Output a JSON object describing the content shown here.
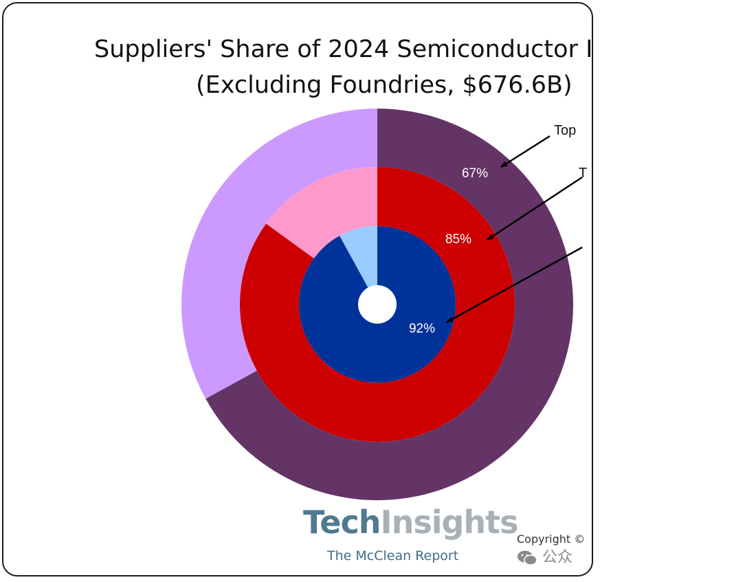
{
  "title": {
    "line1": "Suppliers' Share of 2024 Semiconductor I",
    "line2": "(Excluding Foundries, $676.6B)"
  },
  "callouts": {
    "outer": "Top",
    "middle": "T",
    "inner": ""
  },
  "logo": {
    "brand_part1": "Tech",
    "brand_part2": "Insights",
    "subtitle": "The McClean Report"
  },
  "copyright": "Copyright ©",
  "watermark": "公众",
  "chart_data": {
    "type": "pie",
    "subtype": "nested-donut",
    "rings": [
      {
        "ring": "outer",
        "shown_label": "67%",
        "values": [
          67,
          33
        ],
        "colors": [
          "#643466",
          "#cc99ff"
        ]
      },
      {
        "ring": "middle",
        "shown_label": "85%",
        "values": [
          85,
          15
        ],
        "colors": [
          "#cc0000",
          "#ff99cc"
        ]
      },
      {
        "ring": "inner",
        "shown_label": "92%",
        "values": [
          92,
          8
        ],
        "colors": [
          "#003399",
          "#99ccff"
        ]
      }
    ]
  }
}
